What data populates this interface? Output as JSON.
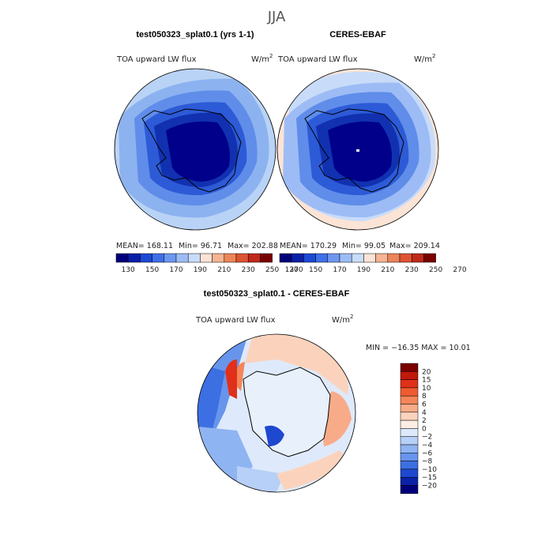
{
  "chart_data": [
    {
      "type": "polar-contour-map",
      "title": "test050323_splat0.1 (yrs 1-1)",
      "field_label": "TOA upward LW flux",
      "units": "W/m",
      "units_exp": "2",
      "stats": {
        "mean": "MEAN= 168.11",
        "min": "Min=  96.71",
        "max": "Max= 202.88"
      },
      "colorbar": {
        "levels": [
          130,
          150,
          170,
          190,
          210,
          230,
          250,
          270
        ],
        "colors": [
          "#00007a",
          "#0a1fa8",
          "#1e49d4",
          "#3f70e8",
          "#6e98f0",
          "#9dbcf5",
          "#c8dcfa",
          "#fbe3d5",
          "#f6b493",
          "#ee8459",
          "#dd5432",
          "#c0281a",
          "#7a0000"
        ]
      }
    },
    {
      "type": "polar-contour-map",
      "title": "CERES-EBAF",
      "field_label": "TOA upward LW flux",
      "units": "W/m",
      "units_exp": "2",
      "stats": {
        "mean": "MEAN= 170.29",
        "min": "Min=  99.05",
        "max": "Max= 209.14"
      },
      "colorbar": {
        "levels": [
          130,
          150,
          170,
          190,
          210,
          230,
          250,
          270
        ],
        "colors": [
          "#00007a",
          "#0a1fa8",
          "#1e49d4",
          "#3f70e8",
          "#6e98f0",
          "#9dbcf5",
          "#c8dcfa",
          "#fbe3d5",
          "#f6b493",
          "#ee8459",
          "#dd5432",
          "#c0281a",
          "#7a0000"
        ]
      }
    },
    {
      "type": "polar-contour-map",
      "title": "test050323_splat0.1 - CERES-EBAF",
      "field_label": "TOA upward LW flux",
      "units": "W/m",
      "units_exp": "2",
      "stats": {
        "range": "MIN = −16.35  MAX =  10.01"
      },
      "colorbar": {
        "levels": [
          "20",
          "15",
          "10",
          "8",
          "6",
          "4",
          "2",
          "0",
          "−2",
          "−4",
          "−6",
          "−8",
          "−10",
          "−15",
          "−20"
        ],
        "colors": [
          "#7a0000",
          "#c0190c",
          "#e0301a",
          "#f05a30",
          "#f58558",
          "#f8ab88",
          "#fbd3bd",
          "#fdeee4",
          "#deeafb",
          "#b6d0f7",
          "#8fb4f2",
          "#6795ec",
          "#3c6fe2",
          "#1f48d0",
          "#0c22a6",
          "#00007a"
        ]
      }
    }
  ],
  "figure": {
    "season": "JJA"
  }
}
